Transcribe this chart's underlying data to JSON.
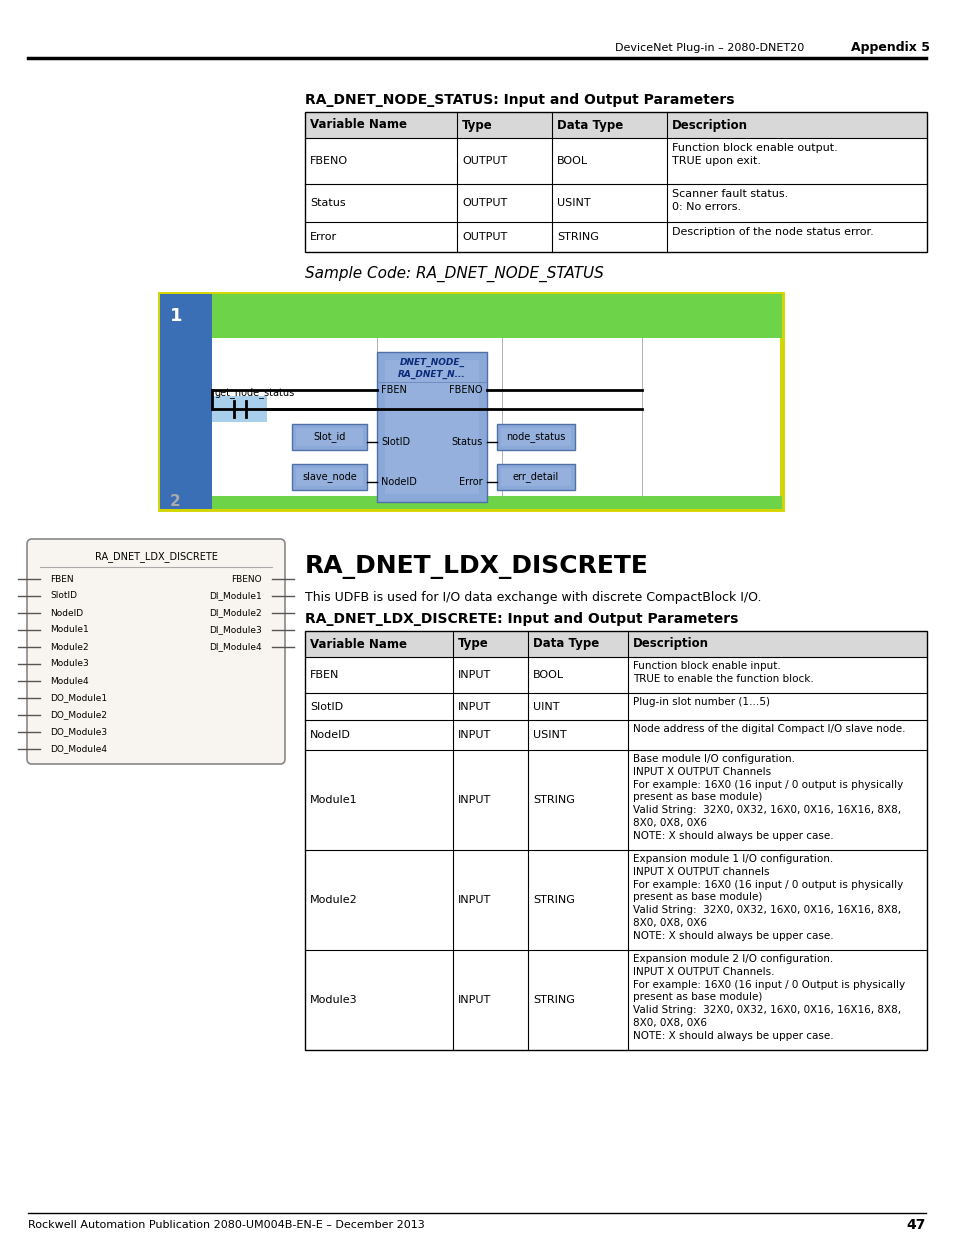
{
  "page_header_left": "DeviceNet Plug-in – 2080-DNET20",
  "page_header_right": "Appendix 5",
  "page_number": "47",
  "footer_left": "Rockwell Automation Publication 2080-UM004B-EN-E – December 2013",
  "section1_title": "RA_DNET_NODE_STATUS: Input and Output Parameters",
  "table1_headers": [
    "Variable Name",
    "Type",
    "Data Type",
    "Description"
  ],
  "table1_rows": [
    [
      "FBENO",
      "OUTPUT",
      "BOOL",
      "Function block enable output.\nTRUE upon exit."
    ],
    [
      "Status",
      "OUTPUT",
      "USINT",
      "Scanner fault status.\n0: No errors."
    ],
    [
      "Error",
      "OUTPUT",
      "STRING",
      "Description of the node status error."
    ]
  ],
  "sample_code_label": "Sample Code: RA_DNET_NODE_STATUS",
  "section2_title": "RA_DNET_LDX_DISCRETE",
  "section2_desc": "This UDFB is used for I/O data exchange with discrete CompactBlock I/O.",
  "table2_title": "RA_DNET_LDX_DISCRETE: Input and Output Parameters",
  "table2_headers": [
    "Variable Name",
    "Type",
    "Data Type",
    "Description"
  ],
  "table2_rows": [
    [
      "FBEN",
      "INPUT",
      "BOOL",
      "Function block enable input.\nTRUE to enable the function block."
    ],
    [
      "SlotID",
      "INPUT",
      "UINT",
      "Plug-in slot number (1…5)"
    ],
    [
      "NodeID",
      "INPUT",
      "USINT",
      "Node address of the digital Compact I/O slave node."
    ],
    [
      "Module1",
      "INPUT",
      "STRING",
      "Base module I/O configuration.\nINPUT X OUTPUT Channels\nFor example: 16X0 (16 input / 0 output is physically\npresent as base module)\nValid String:  32X0, 0X32, 16X0, 0X16, 16X16, 8X8,\n8X0, 0X8, 0X6\nNOTE: X should always be upper case."
    ],
    [
      "Module2",
      "INPUT",
      "STRING",
      "Expansion module 1 I/O configuration.\nINPUT X OUTPUT channels\nFor example: 16X0 (16 input / 0 output is physically\npresent as base module)\nValid String:  32X0, 0X32, 16X0, 0X16, 16X16, 8X8,\n8X0, 0X8, 0X6\nNOTE: X should always be upper case."
    ],
    [
      "Module3",
      "INPUT",
      "STRING",
      "Expansion module 2 I/O configuration.\nINPUT X OUTPUT Channels.\nFor example: 16X0 (16 input / 0 Output is physically\npresent as base module)\nValid String:  32X0, 0X32, 16X0, 0X16, 16X16, 8X8,\n8X0, 0X8, 0X6\nNOTE: X should always be upper case."
    ]
  ],
  "left_pins": [
    "FBEN",
    "SlotID",
    "NodeID",
    "Module1",
    "Module2",
    "Module3",
    "Module4",
    "DO_Module1",
    "DO_Module2",
    "DO_Module3",
    "DO_Module4"
  ],
  "right_pins": [
    "FBENO",
    "DI_Module1",
    "DI_Module2",
    "DI_Module3",
    "DI_Module4"
  ]
}
